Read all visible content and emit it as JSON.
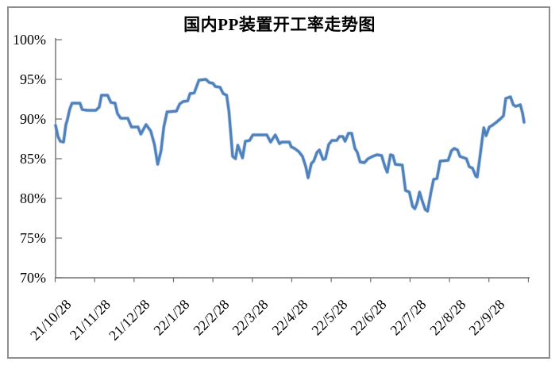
{
  "window": {
    "background_color": "#ffffff",
    "frame_border_color": "#8e8e8e"
  },
  "chart_data": {
    "type": "line",
    "title": "国内PP装置开工率走势图",
    "grid": false,
    "legend": false,
    "line_color": "#4F81BD",
    "axis_color": "#6e6e6e",
    "y_axis": {
      "min": 70,
      "max": 100,
      "unit": "%",
      "ticks": [
        {
          "label": "100%",
          "value": 100
        },
        {
          "label": "95%",
          "value": 95
        },
        {
          "label": "90%",
          "value": 90
        },
        {
          "label": "85%",
          "value": 85
        },
        {
          "label": "80%",
          "value": 80
        },
        {
          "label": "75%",
          "value": 75
        },
        {
          "label": "70%",
          "value": 70
        }
      ]
    },
    "x_axis": {
      "tick_labels": [
        "21/10/28",
        "21/11/28",
        "21/12/28",
        "22/1/28",
        "22/2/28",
        "22/3/28",
        "22/4/28",
        "22/5/28",
        "22/6/28",
        "22/7/28",
        "22/8/28",
        "22/9/28"
      ]
    },
    "series": [
      {
        "color": "#4F81BD",
        "points": [
          [
            0,
            89.2
          ],
          [
            0.005,
            87.8
          ],
          [
            0.01,
            87.2
          ],
          [
            0.017,
            87.1
          ],
          [
            0.022,
            89.3
          ],
          [
            0.025,
            89.9
          ],
          [
            0.03,
            91.2
          ],
          [
            0.035,
            92
          ],
          [
            0.052,
            92
          ],
          [
            0.057,
            91.2
          ],
          [
            0.068,
            91.1
          ],
          [
            0.086,
            91.1
          ],
          [
            0.093,
            91.5
          ],
          [
            0.098,
            93
          ],
          [
            0.111,
            93
          ],
          [
            0.118,
            92.1
          ],
          [
            0.127,
            92
          ],
          [
            0.132,
            90.7
          ],
          [
            0.139,
            90.1
          ],
          [
            0.154,
            90.1
          ],
          [
            0.162,
            89
          ],
          [
            0.176,
            89
          ],
          [
            0.182,
            88.1
          ],
          [
            0.193,
            89.3
          ],
          [
            0.203,
            88.5
          ],
          [
            0.211,
            86.8
          ],
          [
            0.218,
            84.3
          ],
          [
            0.225,
            86
          ],
          [
            0.231,
            89
          ],
          [
            0.238,
            90.9
          ],
          [
            0.258,
            91
          ],
          [
            0.265,
            91.9
          ],
          [
            0.272,
            92.2
          ],
          [
            0.282,
            92.3
          ],
          [
            0.287,
            93.2
          ],
          [
            0.296,
            93.3
          ],
          [
            0.301,
            94.1
          ],
          [
            0.306,
            94.9
          ],
          [
            0.321,
            95
          ],
          [
            0.328,
            94.6
          ],
          [
            0.336,
            94.5
          ],
          [
            0.341,
            94.1
          ],
          [
            0.351,
            94
          ],
          [
            0.358,
            93.2
          ],
          [
            0.365,
            93
          ],
          [
            0.37,
            91
          ],
          [
            0.378,
            85.3
          ],
          [
            0.384,
            85
          ],
          [
            0.389,
            86.7
          ],
          [
            0.394,
            85.9
          ],
          [
            0.399,
            85.1
          ],
          [
            0.405,
            87.2
          ],
          [
            0.414,
            87.3
          ],
          [
            0.421,
            88
          ],
          [
            0.451,
            88
          ],
          [
            0.459,
            87.1
          ],
          [
            0.469,
            88
          ],
          [
            0.478,
            86.9
          ],
          [
            0.483,
            87.1
          ],
          [
            0.499,
            87.1
          ],
          [
            0.503,
            86.5
          ],
          [
            0.51,
            86.3
          ],
          [
            0.519,
            85.9
          ],
          [
            0.527,
            85.3
          ],
          [
            0.534,
            84
          ],
          [
            0.539,
            82.6
          ],
          [
            0.546,
            84.4
          ],
          [
            0.551,
            84.7
          ],
          [
            0.558,
            85.8
          ],
          [
            0.563,
            86.1
          ],
          [
            0.571,
            84.9
          ],
          [
            0.576,
            85
          ],
          [
            0.583,
            86.8
          ],
          [
            0.59,
            87.3
          ],
          [
            0.6,
            87.3
          ],
          [
            0.606,
            87.8
          ],
          [
            0.613,
            87.8
          ],
          [
            0.618,
            87.2
          ],
          [
            0.625,
            88.2
          ],
          [
            0.632,
            88.2
          ],
          [
            0.639,
            86.3
          ],
          [
            0.644,
            85.8
          ],
          [
            0.65,
            84.6
          ],
          [
            0.659,
            84.5
          ],
          [
            0.667,
            85
          ],
          [
            0.677,
            85.3
          ],
          [
            0.686,
            85.5
          ],
          [
            0.696,
            85.4
          ],
          [
            0.703,
            84
          ],
          [
            0.708,
            83.3
          ],
          [
            0.715,
            85.5
          ],
          [
            0.72,
            85.4
          ],
          [
            0.725,
            84.3
          ],
          [
            0.74,
            84.2
          ],
          [
            0.747,
            81
          ],
          [
            0.755,
            80.8
          ],
          [
            0.762,
            79
          ],
          [
            0.767,
            78.7
          ],
          [
            0.772,
            79.5
          ],
          [
            0.777,
            80.8
          ],
          [
            0.782,
            79.8
          ],
          [
            0.789,
            78.6
          ],
          [
            0.794,
            78.4
          ],
          [
            0.801,
            80.7
          ],
          [
            0.807,
            82.4
          ],
          [
            0.814,
            82.5
          ],
          [
            0.821,
            84.7
          ],
          [
            0.838,
            84.8
          ],
          [
            0.845,
            86
          ],
          [
            0.851,
            86.3
          ],
          [
            0.858,
            86.1
          ],
          [
            0.863,
            85.3
          ],
          [
            0.877,
            85
          ],
          [
            0.883,
            84
          ],
          [
            0.89,
            83.8
          ],
          [
            0.897,
            82.8
          ],
          [
            0.9,
            82.7
          ],
          [
            0.905,
            84.9
          ],
          [
            0.911,
            87.6
          ],
          [
            0.914,
            88.9
          ],
          [
            0.919,
            87.9
          ],
          [
            0.926,
            89
          ],
          [
            0.932,
            89.2
          ],
          [
            0.941,
            89.6
          ],
          [
            0.949,
            90
          ],
          [
            0.956,
            90.4
          ],
          [
            0.961,
            92.6
          ],
          [
            0.971,
            92.8
          ],
          [
            0.977,
            91.8
          ],
          [
            0.982,
            91.6
          ],
          [
            0.992,
            91.8
          ],
          [
            0.997,
            90.7
          ],
          [
            1,
            89.6
          ]
        ]
      }
    ]
  }
}
